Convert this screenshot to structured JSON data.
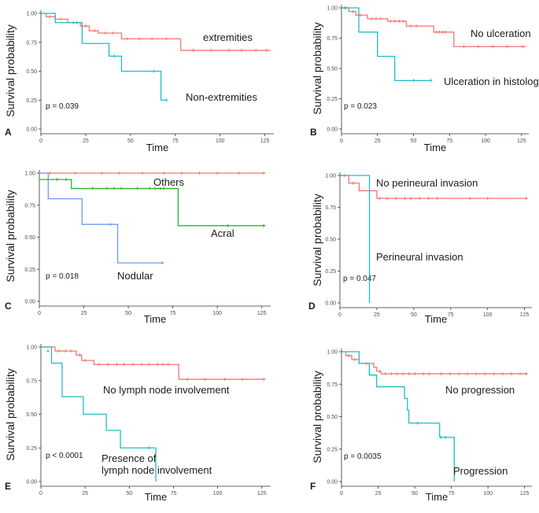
{
  "colors": {
    "red": "#f8766d",
    "teal": "#1ebdc4",
    "green": "#2cb32c",
    "blue": "#6b9bf2",
    "axis": "#333333"
  },
  "chart_data": [
    {
      "panel": "A",
      "type": "line",
      "xlabel": "Time",
      "ylabel": "Survival probability",
      "xlim": [
        0,
        130
      ],
      "ylim": [
        0,
        1
      ],
      "xticks": [
        "0",
        "25",
        "50",
        "75",
        "100",
        "125"
      ],
      "yticks": [
        "0.00",
        "0.25",
        "0.50",
        "0.75",
        "1.00"
      ],
      "pvalue": "p = 0.039",
      "series": [
        {
          "name": "extremities",
          "color": "red",
          "steps": [
            [
              0,
              1.0
            ],
            [
              3,
              0.97
            ],
            [
              8,
              0.95
            ],
            [
              15,
              0.92
            ],
            [
              22,
              0.89
            ],
            [
              27,
              0.85
            ],
            [
              32,
              0.83
            ],
            [
              45,
              0.78
            ],
            [
              78,
              0.68
            ],
            [
              128,
              0.68
            ]
          ],
          "censors": [
            [
              5,
              0.97
            ],
            [
              11,
              0.95
            ],
            [
              18,
              0.92
            ],
            [
              25,
              0.89
            ],
            [
              30,
              0.85
            ],
            [
              36,
              0.83
            ],
            [
              40,
              0.83
            ],
            [
              48,
              0.78
            ],
            [
              55,
              0.78
            ],
            [
              62,
              0.78
            ],
            [
              70,
              0.78
            ],
            [
              85,
              0.68
            ],
            [
              95,
              0.68
            ],
            [
              105,
              0.68
            ],
            [
              112,
              0.68
            ],
            [
              120,
              0.68
            ],
            [
              126,
              0.68
            ]
          ],
          "label": "extremities"
        },
        {
          "name": "Non-extremities",
          "color": "teal",
          "steps": [
            [
              0,
              1.0
            ],
            [
              8,
              0.92
            ],
            [
              23,
              0.74
            ],
            [
              38,
              0.63
            ],
            [
              45,
              0.5
            ],
            [
              67,
              0.25
            ],
            [
              70,
              0.25
            ]
          ],
          "censors": [
            [
              20,
              0.92
            ],
            [
              41,
              0.63
            ],
            [
              63,
              0.5
            ],
            [
              70,
              0.25
            ]
          ],
          "label": "Non-extremities"
        }
      ]
    },
    {
      "panel": "B",
      "type": "line",
      "xlabel": "Time",
      "ylabel": "Survival probability",
      "xlim": [
        0,
        130
      ],
      "ylim": [
        0,
        1
      ],
      "xticks": [
        "0",
        "25",
        "50",
        "75",
        "100",
        "125"
      ],
      "yticks": [
        "0.00",
        "0.25",
        "0.50",
        "0.75",
        "1.00"
      ],
      "pvalue": "p = 0.023",
      "series": [
        {
          "name": "No ulceration",
          "color": "red",
          "steps": [
            [
              0,
              1.0
            ],
            [
              5,
              0.97
            ],
            [
              10,
              0.94
            ],
            [
              18,
              0.91
            ],
            [
              32,
              0.89
            ],
            [
              45,
              0.85
            ],
            [
              64,
              0.8
            ],
            [
              78,
              0.68
            ],
            [
              128,
              0.68
            ]
          ],
          "censors": [
            [
              3,
              1.0
            ],
            [
              8,
              0.97
            ],
            [
              13,
              0.94
            ],
            [
              21,
              0.91
            ],
            [
              24,
              0.91
            ],
            [
              27,
              0.91
            ],
            [
              34,
              0.89
            ],
            [
              37,
              0.89
            ],
            [
              40,
              0.89
            ],
            [
              43,
              0.89
            ],
            [
              48,
              0.85
            ],
            [
              52,
              0.85
            ],
            [
              66,
              0.8
            ],
            [
              68,
              0.8
            ],
            [
              70,
              0.8
            ],
            [
              72,
              0.8
            ],
            [
              85,
              0.68
            ],
            [
              95,
              0.68
            ],
            [
              105,
              0.68
            ],
            [
              115,
              0.68
            ],
            [
              126,
              0.68
            ]
          ],
          "label": "No ulceration"
        },
        {
          "name": "Ulceration in histology",
          "color": "teal",
          "steps": [
            [
              0,
              1.0
            ],
            [
              12,
              0.8
            ],
            [
              25,
              0.6
            ],
            [
              37,
              0.4
            ],
            [
              62,
              0.4
            ]
          ],
          "censors": [
            [
              2,
              1.0
            ],
            [
              50,
              0.4
            ],
            [
              62,
              0.4
            ]
          ],
          "label": "Ulceration in histology"
        }
      ]
    },
    {
      "panel": "C",
      "type": "line",
      "xlabel": "Time",
      "ylabel": "Survival probability",
      "xlim": [
        0,
        130
      ],
      "ylim": [
        0,
        1
      ],
      "xticks": [
        "0",
        "25",
        "50",
        "75",
        "100",
        "125"
      ],
      "yticks": [
        "0.00",
        "0.25",
        "0.50",
        "0.75",
        "1.00"
      ],
      "pvalue": "p = 0.018",
      "series": [
        {
          "name": "Others",
          "color": "red",
          "steps": [
            [
              0,
              1.0
            ],
            [
              127,
              1.0
            ]
          ],
          "censors": [
            [
              6,
              1.0
            ],
            [
              20,
              1.0
            ],
            [
              35,
              1.0
            ],
            [
              45,
              1.0
            ],
            [
              58,
              1.0
            ],
            [
              70,
              1.0
            ],
            [
              80,
              1.0
            ],
            [
              90,
              1.0
            ],
            [
              100,
              1.0
            ],
            [
              112,
              1.0
            ],
            [
              126,
              1.0
            ]
          ],
          "label": "Others"
        },
        {
          "name": "Acral",
          "color": "green",
          "steps": [
            [
              0,
              0.95
            ],
            [
              18,
              0.88
            ],
            [
              78,
              0.59
            ],
            [
              127,
              0.59
            ]
          ],
          "censors": [
            [
              5,
              0.95
            ],
            [
              10,
              0.95
            ],
            [
              15,
              0.95
            ],
            [
              30,
              0.88
            ],
            [
              38,
              0.88
            ],
            [
              42,
              0.88
            ],
            [
              46,
              0.88
            ],
            [
              55,
              0.88
            ],
            [
              62,
              0.88
            ],
            [
              65,
              0.88
            ],
            [
              68,
              0.88
            ],
            [
              70,
              0.88
            ],
            [
              106,
              0.59
            ],
            [
              126,
              0.59
            ]
          ],
          "label": "Acral"
        },
        {
          "name": "Nodular",
          "color": "blue",
          "steps": [
            [
              0,
              1.0
            ],
            [
              5,
              0.8
            ],
            [
              24,
              0.6
            ],
            [
              44,
              0.3
            ],
            [
              70,
              0.3
            ]
          ],
          "censors": [
            [
              40,
              0.6
            ],
            [
              69,
              0.3
            ]
          ],
          "label": "Nodular"
        }
      ]
    },
    {
      "panel": "D",
      "type": "line",
      "xlabel": "Time",
      "ylabel": "Survival probability",
      "xlim": [
        0,
        130
      ],
      "ylim": [
        0,
        1
      ],
      "xticks": [
        "0",
        "25",
        "50",
        "75",
        "100",
        "125"
      ],
      "yticks": [
        "0.00",
        "0.25",
        "0.50",
        "0.75",
        "1.00"
      ],
      "pvalue": "p = 0.047",
      "series": [
        {
          "name": "No perineural invasion",
          "color": "red",
          "steps": [
            [
              0,
              1.0
            ],
            [
              6,
              0.94
            ],
            [
              13,
              0.88
            ],
            [
              25,
              0.82
            ],
            [
              127,
              0.82
            ]
          ],
          "censors": [
            [
              3,
              1.0
            ],
            [
              9,
              0.94
            ],
            [
              20,
              0.88
            ],
            [
              27,
              0.82
            ],
            [
              32,
              0.82
            ],
            [
              38,
              0.82
            ],
            [
              44,
              0.82
            ],
            [
              48,
              0.82
            ],
            [
              54,
              0.82
            ],
            [
              60,
              0.82
            ],
            [
              66,
              0.82
            ],
            [
              88,
              0.82
            ],
            [
              100,
              0.82
            ],
            [
              126,
              0.82
            ]
          ],
          "label": "No perineural invasion"
        },
        {
          "name": "Perineural invasion",
          "color": "teal",
          "steps": [
            [
              0,
              1.0
            ],
            [
              20,
              1.0
            ],
            [
              20,
              0.0
            ]
          ],
          "censors": [],
          "label": "Perineural invasion"
        }
      ]
    },
    {
      "panel": "E",
      "type": "line",
      "xlabel": "Time",
      "ylabel": "Survival probability",
      "xlim": [
        0,
        130
      ],
      "ylim": [
        0,
        1
      ],
      "xticks": [
        "0",
        "25",
        "50",
        "75",
        "100",
        "125"
      ],
      "yticks": [
        "0.00",
        "0.25",
        "0.50",
        "0.75",
        "1.00"
      ],
      "pvalue": "p < 0.0001",
      "series": [
        {
          "name": "No lymph node involvement",
          "color": "red",
          "steps": [
            [
              0,
              1.0
            ],
            [
              8,
              0.97
            ],
            [
              20,
              0.94
            ],
            [
              23,
              0.9
            ],
            [
              30,
              0.87
            ],
            [
              78,
              0.76
            ],
            [
              127,
              0.76
            ]
          ],
          "censors": [
            [
              4,
              0.97
            ],
            [
              10,
              0.97
            ],
            [
              14,
              0.97
            ],
            [
              17,
              0.97
            ],
            [
              22,
              0.94
            ],
            [
              25,
              0.9
            ],
            [
              33,
              0.87
            ],
            [
              38,
              0.87
            ],
            [
              43,
              0.87
            ],
            [
              47,
              0.87
            ],
            [
              52,
              0.87
            ],
            [
              57,
              0.87
            ],
            [
              61,
              0.87
            ],
            [
              66,
              0.87
            ],
            [
              69,
              0.87
            ],
            [
              72,
              0.87
            ],
            [
              83,
              0.76
            ],
            [
              93,
              0.76
            ],
            [
              104,
              0.76
            ],
            [
              114,
              0.76
            ],
            [
              126,
              0.76
            ]
          ],
          "label": "No lymph node involvement"
        },
        {
          "name": "Presence of lymph node involvement",
          "color": "teal",
          "steps": [
            [
              0,
              1.0
            ],
            [
              6,
              0.88
            ],
            [
              12,
              0.63
            ],
            [
              24,
              0.5
            ],
            [
              37,
              0.38
            ],
            [
              45,
              0.25
            ],
            [
              65,
              0.0
            ]
          ],
          "censors": [
            [
              61,
              0.25
            ]
          ],
          "label": "Presence of lymph node involvement",
          "label_lines": [
            "Presence of",
            "lymph node involvement"
          ]
        }
      ]
    },
    {
      "panel": "F",
      "type": "line",
      "xlabel": "Time",
      "ylabel": "Survival probability",
      "xlim": [
        0,
        130
      ],
      "ylim": [
        0,
        1
      ],
      "xticks": [
        "0",
        "25",
        "50",
        "75",
        "100",
        "125"
      ],
      "yticks": [
        "0.00",
        "0.25",
        "0.50",
        "0.75",
        "1.00"
      ],
      "pvalue": "p = 0.0035",
      "series": [
        {
          "name": "No progression",
          "color": "red",
          "steps": [
            [
              0,
              1.0
            ],
            [
              3,
              0.97
            ],
            [
              7,
              0.94
            ],
            [
              12,
              0.91
            ],
            [
              22,
              0.88
            ],
            [
              24,
              0.85
            ],
            [
              27,
              0.83
            ],
            [
              127,
              0.83
            ]
          ],
          "censors": [
            [
              5,
              0.97
            ],
            [
              9,
              0.94
            ],
            [
              17,
              0.91
            ],
            [
              26,
              0.85
            ],
            [
              30,
              0.83
            ],
            [
              34,
              0.83
            ],
            [
              38,
              0.83
            ],
            [
              42,
              0.83
            ],
            [
              46,
              0.83
            ],
            [
              50,
              0.83
            ],
            [
              56,
              0.83
            ],
            [
              60,
              0.83
            ],
            [
              68,
              0.83
            ],
            [
              74,
              0.83
            ],
            [
              80,
              0.83
            ],
            [
              86,
              0.83
            ],
            [
              92,
              0.83
            ],
            [
              98,
              0.83
            ],
            [
              104,
              0.83
            ],
            [
              110,
              0.83
            ],
            [
              116,
              0.83
            ],
            [
              122,
              0.83
            ],
            [
              126,
              0.83
            ]
          ],
          "label": "No progression"
        },
        {
          "name": "Progression",
          "color": "teal",
          "steps": [
            [
              0,
              1.0
            ],
            [
              12,
              0.91
            ],
            [
              19,
              0.82
            ],
            [
              24,
              0.73
            ],
            [
              43,
              0.64
            ],
            [
              45,
              0.55
            ],
            [
              46,
              0.45
            ],
            [
              67,
              0.34
            ],
            [
              77,
              0.0
            ]
          ],
          "censors": [
            [
              52,
              0.45
            ],
            [
              68,
              0.34
            ],
            [
              71,
              0.34
            ]
          ],
          "label": "Progression"
        }
      ]
    }
  ]
}
